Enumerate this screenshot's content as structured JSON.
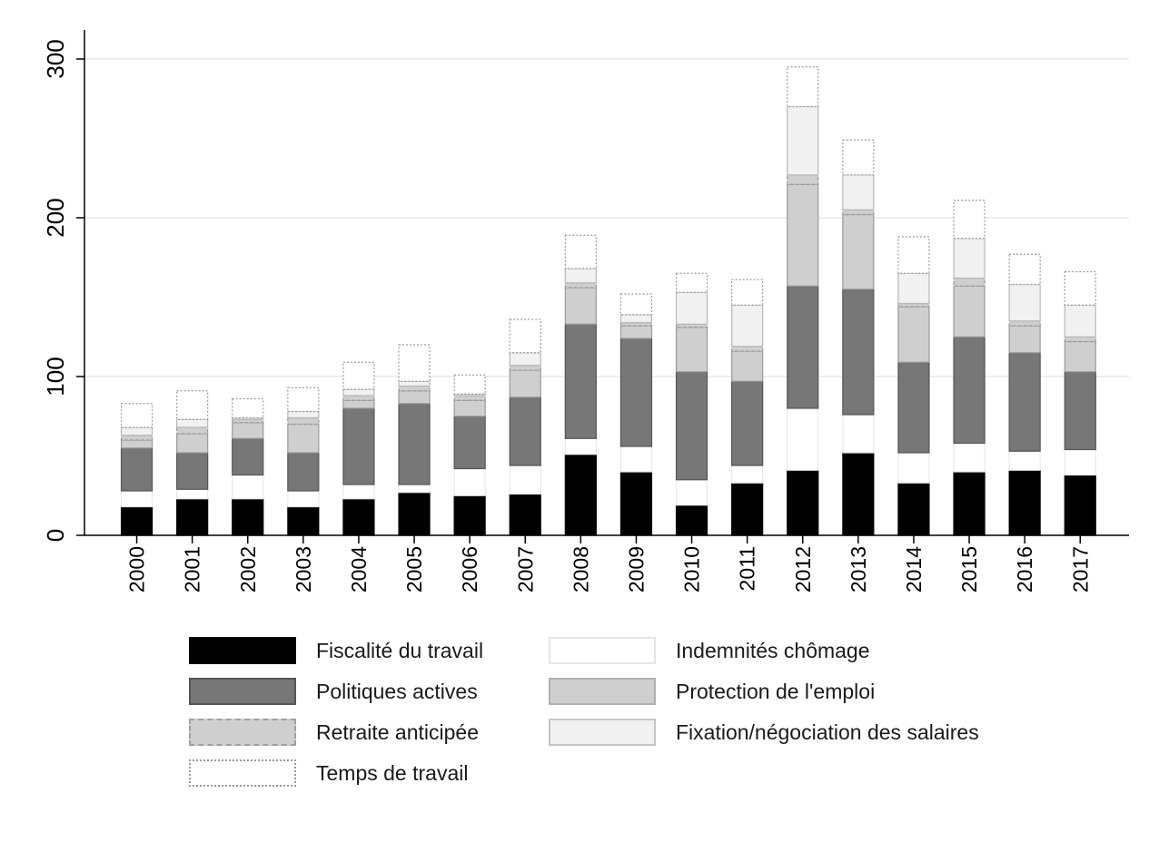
{
  "chart_data": {
    "type": "bar",
    "stacked": true,
    "categories": [
      "2000",
      "2001",
      "2002",
      "2003",
      "2004",
      "2005",
      "2006",
      "2007",
      "2008",
      "2009",
      "2010",
      "2011",
      "2012",
      "2013",
      "2014",
      "2015",
      "2016",
      "2017"
    ],
    "ylim": [
      0,
      320
    ],
    "yticks": [
      0,
      100,
      200,
      300
    ],
    "grid": true,
    "legend_position": "bottom",
    "series": [
      {
        "name": "Fiscalité du travail",
        "values": [
          18,
          23,
          23,
          18,
          23,
          27,
          25,
          26,
          51,
          40,
          19,
          33,
          41,
          52,
          33,
          40,
          41,
          38
        ],
        "fill": "#000000",
        "stroke": "#000000",
        "dash": ""
      },
      {
        "name": "Indemnités chômage",
        "values": [
          10,
          6,
          15,
          10,
          9,
          5,
          17,
          18,
          10,
          16,
          16,
          11,
          39,
          24,
          19,
          18,
          12,
          16
        ],
        "fill": "#ffffff",
        "stroke": "#e8e8e8",
        "dash": ""
      },
      {
        "name": "Politiques actives",
        "values": [
          27,
          23,
          23,
          24,
          48,
          51,
          33,
          43,
          72,
          68,
          68,
          53,
          77,
          79,
          57,
          67,
          62,
          49
        ],
        "fill": "#777777",
        "stroke": "#555555",
        "dash": ""
      },
      {
        "name": "Protection de l'emploi",
        "values": [
          5,
          12,
          10,
          18,
          5,
          8,
          10,
          17,
          23,
          8,
          28,
          19,
          64,
          47,
          35,
          32,
          17,
          19
        ],
        "fill": "#cfcfcf",
        "stroke": "#9a9a9a",
        "dash": ""
      },
      {
        "name": "Retraite anticipée",
        "values": [
          3,
          4,
          2,
          4,
          3,
          3,
          3,
          3,
          3,
          2,
          2,
          3,
          6,
          3,
          2,
          5,
          3,
          3
        ],
        "fill": "#cfcfcf",
        "stroke": "#9a9a9a",
        "dash": "4,2"
      },
      {
        "name": "Fixation/négociation des salaires",
        "values": [
          5,
          5,
          1,
          4,
          4,
          3,
          1,
          8,
          9,
          5,
          20,
          26,
          43,
          22,
          19,
          25,
          23,
          20
        ],
        "fill": "#f1f1f1",
        "stroke": "#b8b8b8",
        "dash": ""
      },
      {
        "name": "Temps de travail",
        "values": [
          15,
          18,
          12,
          15,
          17,
          23,
          12,
          21,
          21,
          13,
          12,
          16,
          25,
          22,
          23,
          24,
          19,
          21
        ],
        "fill": "#ffffff",
        "stroke": "#9a9a9a",
        "dash": "2,2"
      }
    ],
    "title": "",
    "xlabel": "",
    "ylabel": ""
  }
}
